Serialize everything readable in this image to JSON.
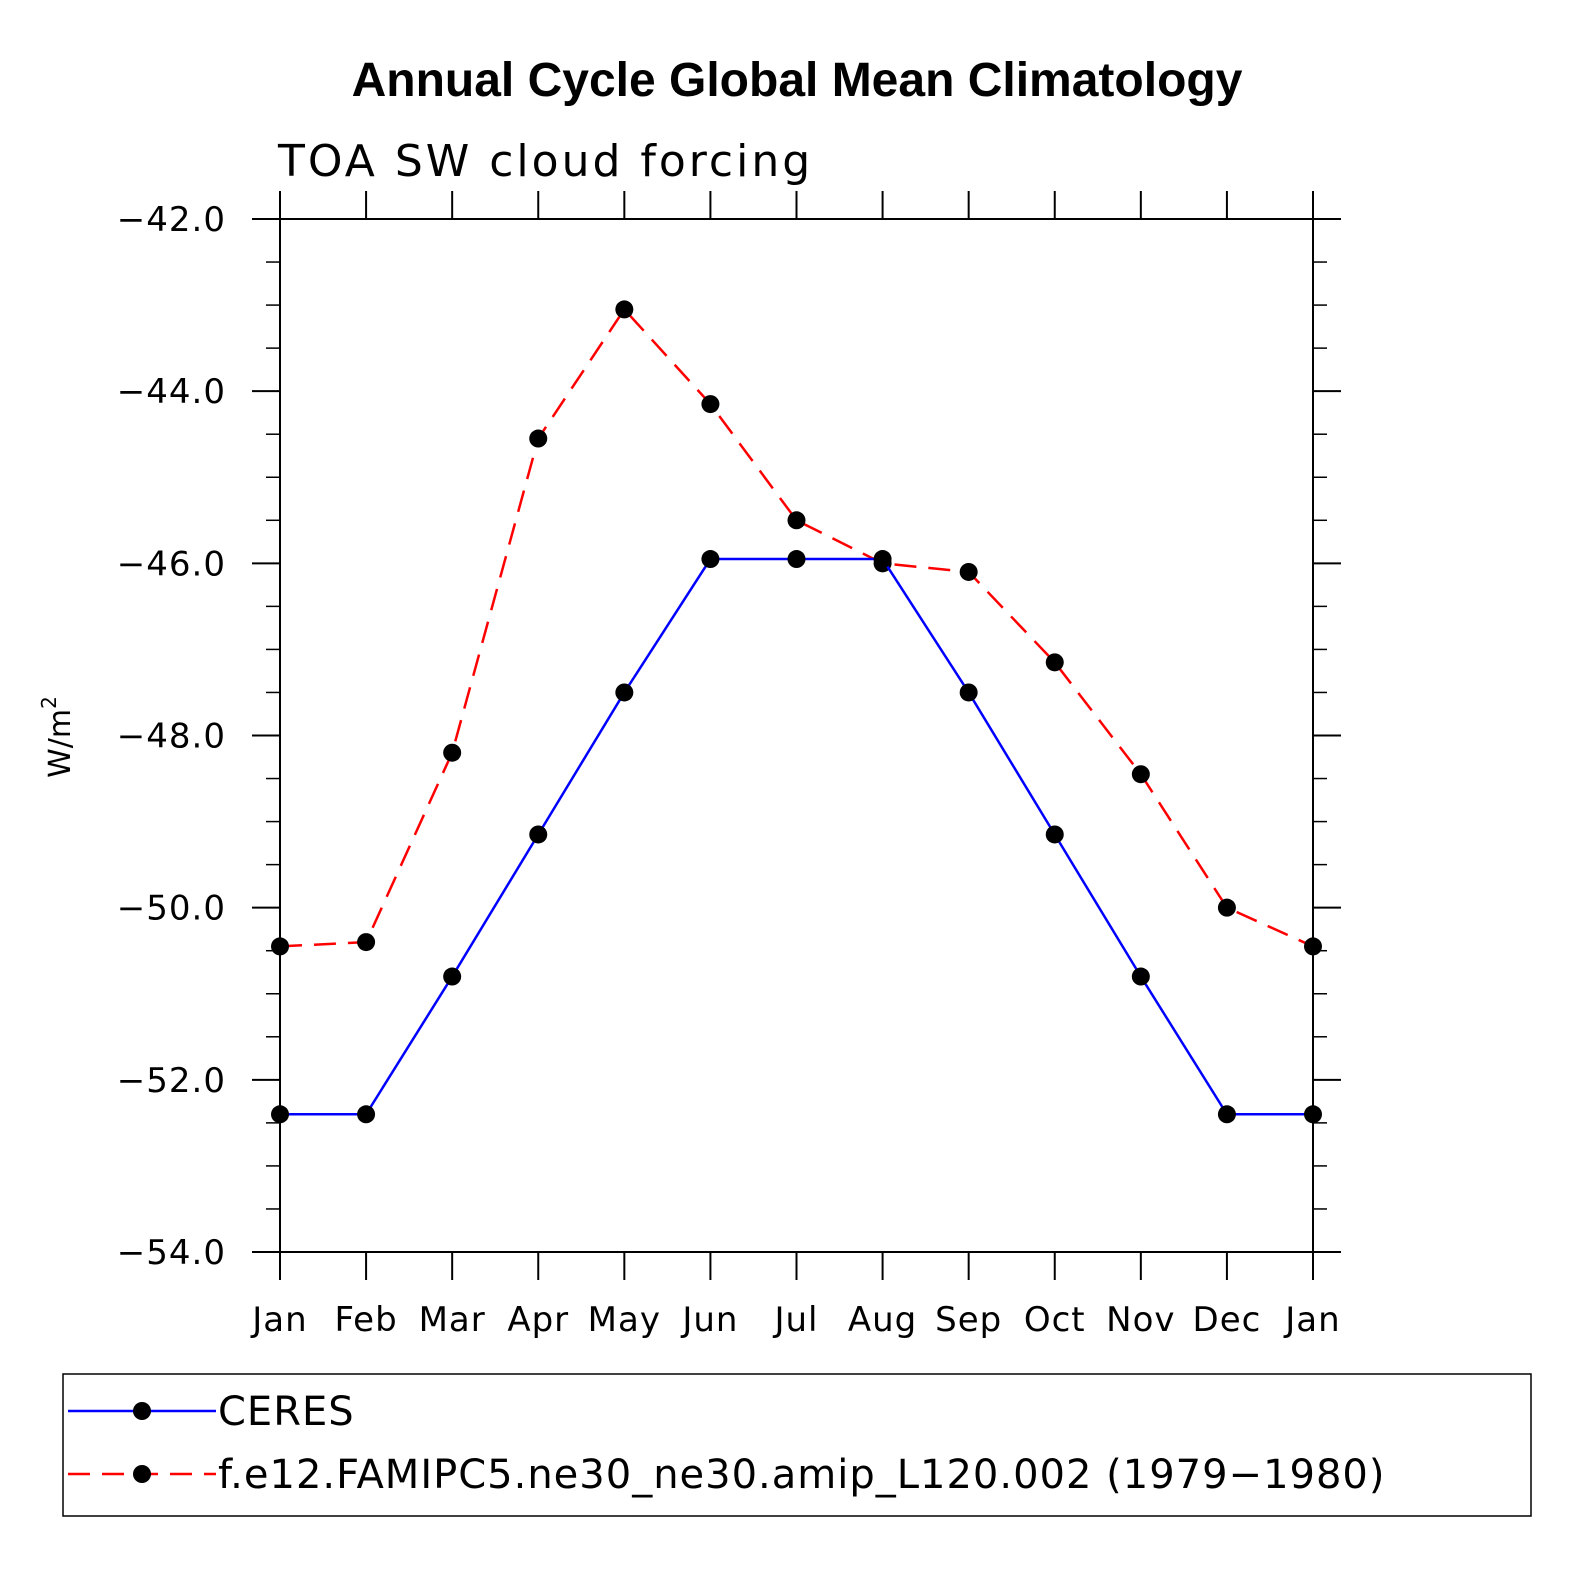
{
  "chart_data": {
    "type": "line",
    "title": "Annual Cycle Global Mean Climatology",
    "subtitle": "TOA SW cloud forcing",
    "ylabel": "W/m",
    "ylabel_superscript": "2",
    "xlabel": "",
    "categories": [
      "Jan",
      "Feb",
      "Mar",
      "Apr",
      "May",
      "Jun",
      "Jul",
      "Aug",
      "Sep",
      "Oct",
      "Nov",
      "Dec",
      "Jan"
    ],
    "ylim": [
      -54.0,
      -42.0
    ],
    "y_ticks": [
      -42.0,
      -44.0,
      -46.0,
      -48.0,
      -50.0,
      -52.0,
      -54.0
    ],
    "y_tick_labels": [
      "−42.0",
      "−44.0",
      "−46.0",
      "−48.0",
      "−50.0",
      "−52.0",
      "−54.0"
    ],
    "series": [
      {
        "name": "CERES",
        "color": "#0000ff",
        "dash": "solid",
        "values": [
          -52.4,
          -52.4,
          -50.8,
          -49.15,
          -47.5,
          -45.95,
          -45.95,
          -45.95,
          -47.5,
          -49.15,
          -50.8,
          -52.4,
          -52.4
        ]
      },
      {
        "name": "f.e12.FAMIPC5.ne30_ne30.amip_L120.002 (1979−1980)",
        "color": "#ff0000",
        "dash": "dashed",
        "values": [
          -50.45,
          -50.4,
          -48.2,
          -44.55,
          -43.05,
          -44.15,
          -45.5,
          -46.0,
          -46.1,
          -47.15,
          -48.45,
          -50.0,
          -50.45
        ]
      }
    ],
    "legend_position": "bottom"
  }
}
